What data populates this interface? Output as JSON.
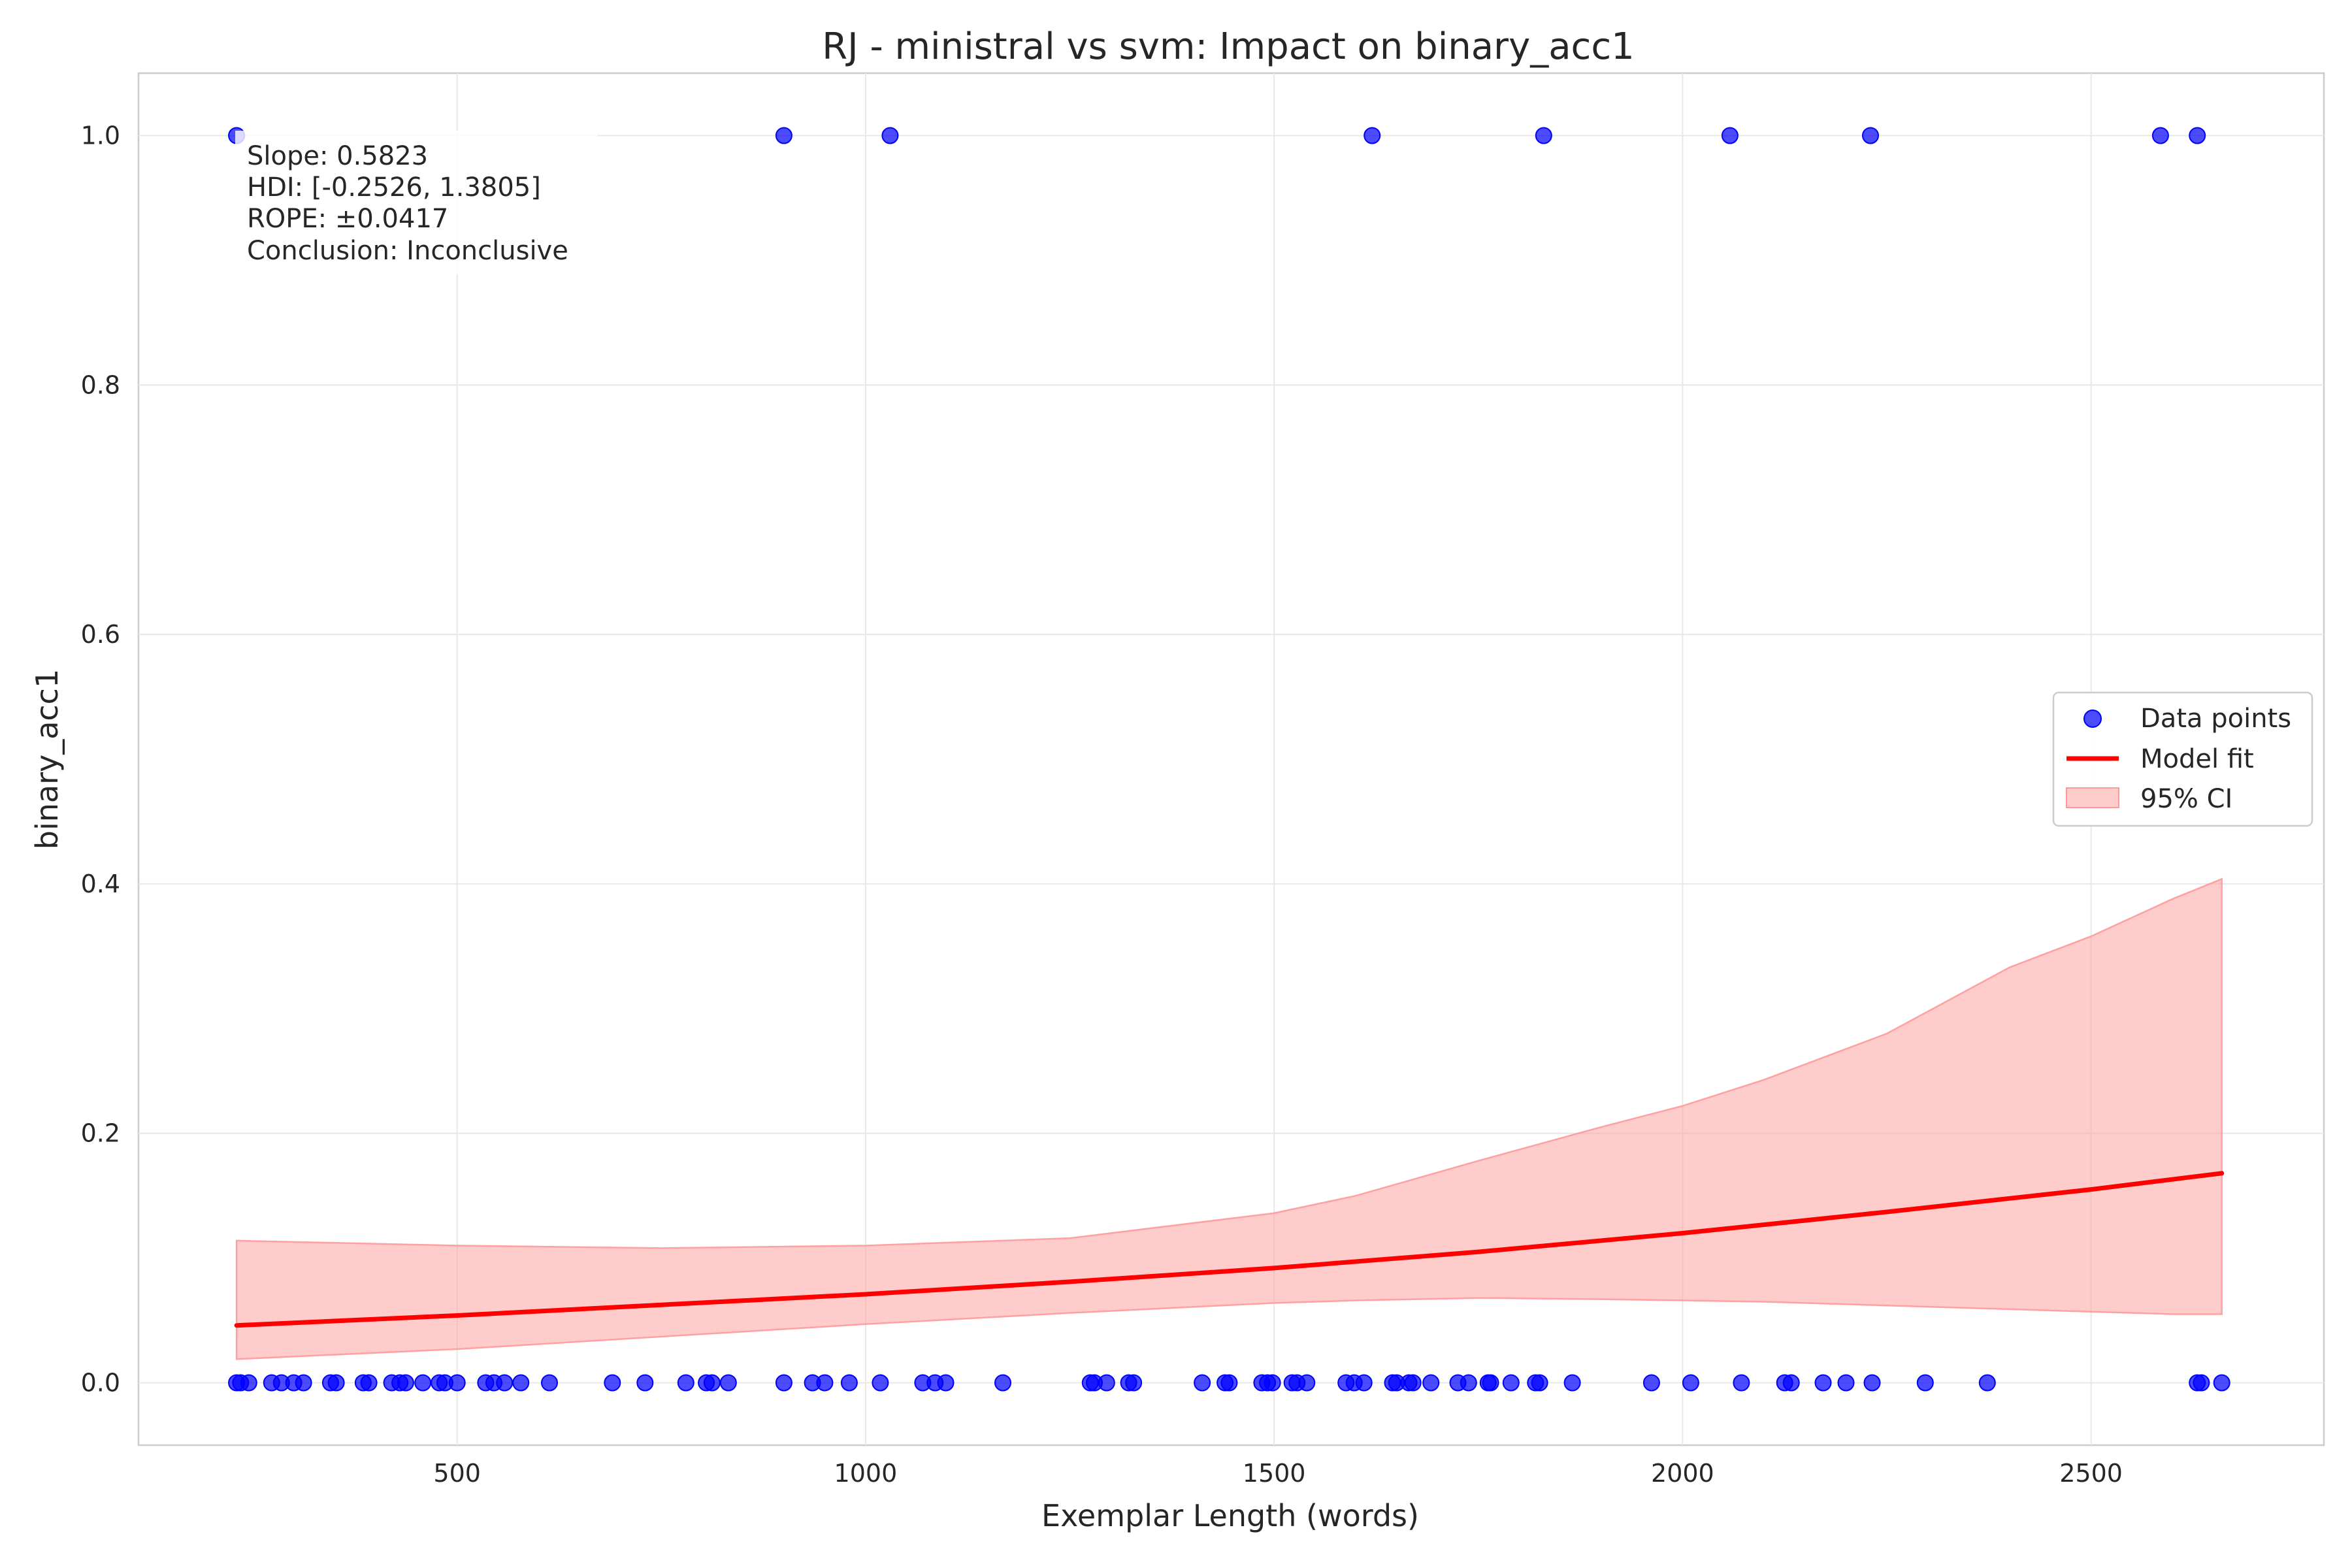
{
  "chart_data": {
    "type": "scatter",
    "title": "RJ - ministral vs svm: Impact on binary_acc1",
    "xlabel": "Exemplar Length (words)",
    "ylabel": "binary_acc1",
    "xlim": [
      110,
      2785
    ],
    "ylim": [
      -0.05,
      1.05
    ],
    "xticks": [
      500,
      1000,
      1500,
      2000,
      2500
    ],
    "yticks": [
      0.0,
      0.2,
      0.4,
      0.6,
      0.8,
      1.0
    ],
    "xtick_labels": [
      "500",
      "1000",
      "1500",
      "2000",
      "2500"
    ],
    "ytick_labels": [
      "0.0",
      "0.2",
      "0.4",
      "0.6",
      "0.8",
      "1.0"
    ],
    "grid": true,
    "legend_position": "center-right",
    "colors": {
      "points": "#0000ff",
      "fit": "#ff0000",
      "ci": "#ff9999"
    },
    "series": [
      {
        "name": "Data points",
        "kind": "scatter",
        "x": [
          230,
          900,
          1030,
          1620,
          1830,
          2058,
          2230,
          2585,
          2630,
          230,
          235,
          245,
          273,
          285,
          300,
          312,
          345,
          352,
          385,
          392,
          420,
          430,
          437,
          458,
          478,
          485,
          500,
          535,
          545,
          558,
          578,
          613,
          690,
          730,
          780,
          805,
          812,
          832,
          900,
          935,
          950,
          980,
          1018,
          1070,
          1085,
          1098,
          1168,
          1275,
          1280,
          1295,
          1322,
          1328,
          1412,
          1440,
          1445,
          1485,
          1492,
          1498,
          1522,
          1528,
          1540,
          1588,
          1598,
          1610,
          1645,
          1650,
          1665,
          1670,
          1692,
          1725,
          1738,
          1762,
          1765,
          1790,
          1820,
          1825,
          1865,
          1962,
          2010,
          2072,
          2125,
          2133,
          2172,
          2200,
          2232,
          2297,
          2373,
          2630,
          2635,
          2660
        ],
        "y": [
          1,
          1,
          1,
          1,
          1,
          1,
          1,
          1,
          1,
          0,
          0,
          0,
          0,
          0,
          0,
          0,
          0,
          0,
          0,
          0,
          0,
          0,
          0,
          0,
          0,
          0,
          0,
          0,
          0,
          0,
          0,
          0,
          0,
          0,
          0,
          0,
          0,
          0,
          0,
          0,
          0,
          0,
          0,
          0,
          0,
          0,
          0,
          0,
          0,
          0,
          0,
          0,
          0,
          0,
          0,
          0,
          0,
          0,
          0,
          0,
          0,
          0,
          0,
          0,
          0,
          0,
          0,
          0,
          0,
          0,
          0,
          0,
          0,
          0,
          0,
          0,
          0,
          0,
          0,
          0,
          0,
          0,
          0,
          0,
          0,
          0,
          0,
          0,
          0,
          0
        ]
      },
      {
        "name": "Model fit",
        "kind": "line",
        "x": [
          230,
          500,
          1000,
          1250,
          1500,
          1750,
          2000,
          2250,
          2500,
          2660
        ],
        "y": [
          0.046,
          0.054,
          0.071,
          0.081,
          0.092,
          0.105,
          0.12,
          0.137,
          0.155,
          0.168
        ]
      },
      {
        "name": "95% CI",
        "kind": "band",
        "x": [
          230,
          500,
          750,
          1000,
          1250,
          1500,
          1600,
          1750,
          1900,
          2000,
          2100,
          2250,
          2400,
          2500,
          2600,
          2660
        ],
        "lower": [
          0.019,
          0.027,
          0.037,
          0.047,
          0.056,
          0.064,
          0.066,
          0.068,
          0.067,
          0.066,
          0.065,
          0.062,
          0.059,
          0.057,
          0.055,
          0.055
        ],
        "upper": [
          0.114,
          0.11,
          0.108,
          0.11,
          0.116,
          0.136,
          0.15,
          0.178,
          0.205,
          0.222,
          0.243,
          0.28,
          0.333,
          0.358,
          0.388,
          0.404
        ]
      }
    ],
    "annotation": [
      "Slope: 0.5823",
      "HDI: [-0.2526, 1.3805]",
      "ROPE: ±0.0417",
      "Conclusion: Inconclusive"
    ]
  }
}
